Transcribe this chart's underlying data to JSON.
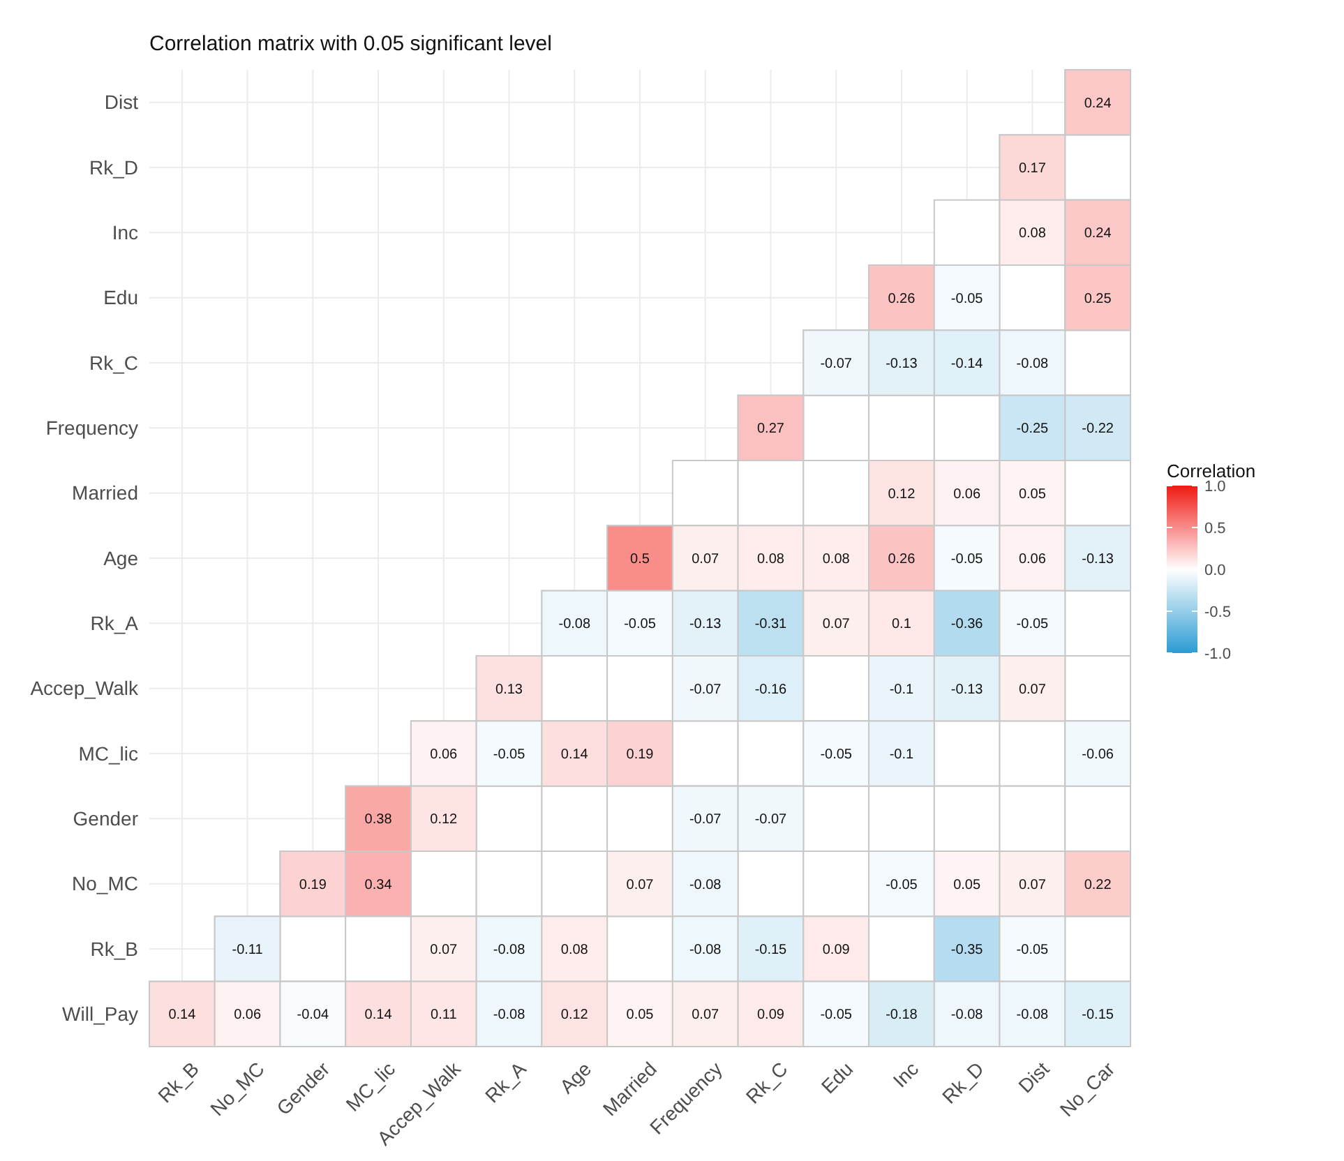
{
  "chart_data": {
    "type": "heatmap",
    "title": "Correlation matrix with 0.05 significant level",
    "legend_title": "Correlation",
    "categories": [
      "Rk_B",
      "No_MC",
      "Gender",
      "MC_lic",
      "Accep_Walk",
      "Rk_A",
      "Age",
      "Married",
      "Frequency",
      "Rk_C",
      "Edu",
      "Inc",
      "Rk_D",
      "Dist",
      "No_Car"
    ],
    "y_categories": [
      "Dist",
      "Rk_D",
      "Inc",
      "Edu",
      "Rk_C",
      "Frequency",
      "Married",
      "Age",
      "Rk_A",
      "Accep_Walk",
      "MC_lic",
      "Gender",
      "No_MC",
      "Rk_B",
      "Will_Pay"
    ],
    "cells": [
      [
        null,
        null,
        null,
        null,
        null,
        null,
        null,
        null,
        null,
        null,
        null,
        null,
        null,
        null,
        0.24
      ],
      [
        null,
        null,
        null,
        null,
        null,
        null,
        null,
        null,
        null,
        null,
        null,
        null,
        null,
        0.17,
        null
      ],
      [
        null,
        null,
        null,
        null,
        null,
        null,
        null,
        null,
        null,
        null,
        null,
        null,
        null,
        0.08,
        0.24
      ],
      [
        null,
        null,
        null,
        null,
        null,
        null,
        null,
        null,
        null,
        null,
        null,
        0.26,
        -0.05,
        null,
        0.25
      ],
      [
        null,
        null,
        null,
        null,
        null,
        null,
        null,
        null,
        null,
        null,
        -0.07,
        -0.13,
        -0.14,
        -0.08,
        null
      ],
      [
        null,
        null,
        null,
        null,
        null,
        null,
        null,
        null,
        null,
        0.27,
        null,
        null,
        null,
        -0.25,
        -0.22
      ],
      [
        null,
        null,
        null,
        null,
        null,
        null,
        null,
        null,
        null,
        null,
        null,
        0.12,
        0.06,
        0.05,
        null
      ],
      [
        null,
        null,
        null,
        null,
        null,
        null,
        null,
        0.5,
        0.07,
        0.08,
        0.08,
        0.26,
        -0.05,
        0.06,
        -0.13
      ],
      [
        null,
        null,
        null,
        null,
        null,
        null,
        -0.08,
        -0.05,
        -0.13,
        -0.31,
        0.07,
        0.1,
        -0.36,
        -0.05,
        null
      ],
      [
        null,
        null,
        null,
        null,
        null,
        0.13,
        null,
        null,
        -0.07,
        -0.16,
        null,
        -0.1,
        -0.13,
        0.07,
        null
      ],
      [
        null,
        null,
        null,
        null,
        0.06,
        -0.05,
        0.14,
        0.19,
        null,
        null,
        -0.05,
        -0.1,
        null,
        null,
        -0.06
      ],
      [
        null,
        null,
        null,
        0.38,
        0.12,
        null,
        null,
        null,
        -0.07,
        -0.07,
        null,
        null,
        null,
        null,
        null
      ],
      [
        null,
        null,
        0.19,
        0.34,
        null,
        null,
        null,
        0.07,
        -0.08,
        null,
        null,
        -0.05,
        0.05,
        0.07,
        0.22
      ],
      [
        null,
        -0.11,
        null,
        null,
        0.07,
        -0.08,
        0.08,
        null,
        -0.08,
        -0.15,
        0.09,
        null,
        -0.35,
        -0.05,
        null
      ],
      [
        0.14,
        0.06,
        -0.04,
        0.14,
        0.11,
        -0.08,
        0.12,
        0.05,
        0.07,
        0.09,
        -0.05,
        -0.18,
        -0.08,
        -0.08,
        -0.15
      ]
    ],
    "clim": [
      -1,
      1
    ],
    "cticks": [
      {
        "value": -1,
        "label": "-1.0"
      },
      {
        "value": -0.5,
        "label": "-0.5"
      },
      {
        "value": 0,
        "label": "0.0"
      },
      {
        "value": 0.5,
        "label": "0.5"
      },
      {
        "value": 1,
        "label": "1.0"
      }
    ],
    "data_labels": true,
    "grid": true
  }
}
